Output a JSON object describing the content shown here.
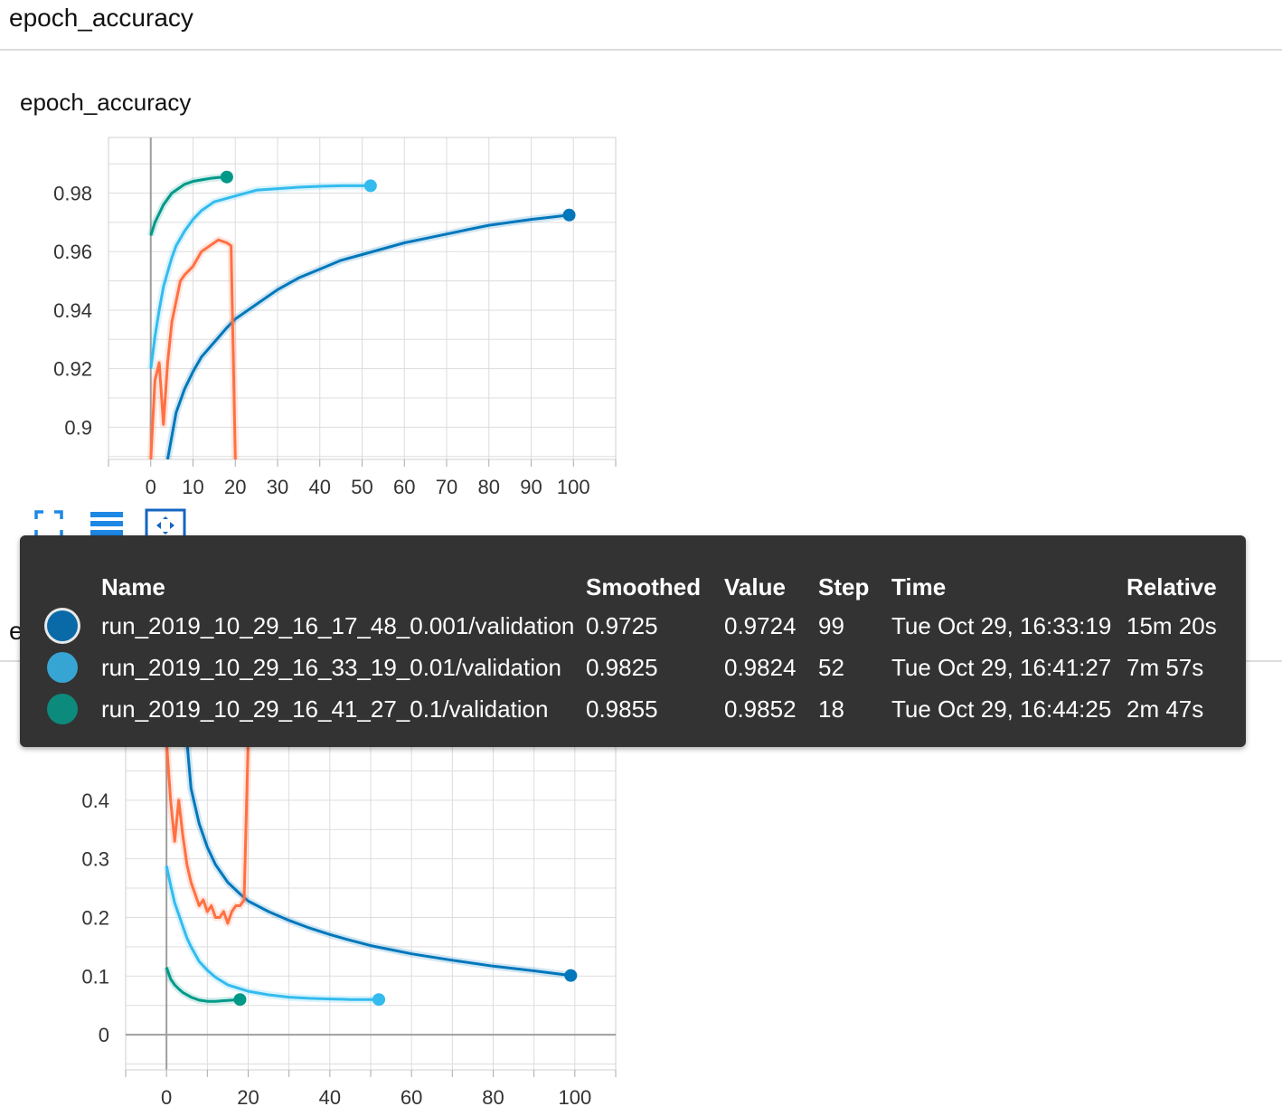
{
  "section_accuracy": {
    "title": "epoch_accuracy"
  },
  "section_loss": {
    "title": "epoch_loss"
  },
  "colors": {
    "run_0001": "#0077bb",
    "run_001": "#33bbee",
    "run_01": "#009988",
    "orange": "#ff7043",
    "axis": "#9e9e9e",
    "grid": "#dddddd"
  },
  "toolbar": {
    "expand_icon": "fullscreen-icon",
    "data_table_icon": "list-icon",
    "fit_domain_icon": "fit-domain-icon"
  },
  "tooltip": {
    "headers": {
      "name": "Name",
      "smoothed": "Smoothed",
      "value": "Value",
      "step": "Step",
      "time": "Time",
      "relative": "Relative"
    },
    "rows": [
      {
        "name": "run_2019_10_29_16_17_48_0.001/validation",
        "smoothed": "0.9725",
        "value": "0.9724",
        "step": "99",
        "time": "Tue Oct 29, 16:33:19",
        "relative": "15m 20s",
        "color": "#0a6aa8"
      },
      {
        "name": "run_2019_10_29_16_33_19_0.01/validation",
        "smoothed": "0.9825",
        "value": "0.9824",
        "step": "52",
        "time": "Tue Oct 29, 16:41:27",
        "relative": "7m 57s",
        "color": "#37a5d4"
      },
      {
        "name": "run_2019_10_29_16_41_27_0.1/validation",
        "smoothed": "0.9855",
        "value": "0.9852",
        "step": "18",
        "time": "Tue Oct 29, 16:44:25",
        "relative": "2m 47s",
        "color": "#0c8a7b"
      }
    ]
  },
  "chart_data": [
    {
      "type": "line",
      "title": "epoch_accuracy",
      "xlabel": "",
      "ylabel": "",
      "xlim": [
        -10,
        110
      ],
      "ylim": [
        0.889,
        0.999
      ],
      "x_ticks": [
        0,
        10,
        20,
        30,
        40,
        50,
        60,
        70,
        80,
        90,
        100
      ],
      "y_ticks": [
        0.9,
        0.92,
        0.94,
        0.96,
        0.98
      ],
      "y_tick_labels": [
        "0.9",
        "0.92",
        "0.94",
        "0.96",
        "0.98"
      ],
      "grid": true,
      "series": [
        {
          "color": "#0077bb",
          "x": [
            4,
            6,
            8,
            10,
            12,
            15,
            18,
            20,
            25,
            30,
            35,
            40,
            45,
            50,
            55,
            60,
            65,
            70,
            75,
            80,
            85,
            90,
            95,
            99
          ],
          "y": [
            0.889,
            0.905,
            0.913,
            0.919,
            0.924,
            0.929,
            0.934,
            0.937,
            0.942,
            0.947,
            0.951,
            0.954,
            0.957,
            0.959,
            0.961,
            0.963,
            0.9645,
            0.966,
            0.9675,
            0.969,
            0.97,
            0.971,
            0.9718,
            0.9725
          ],
          "end_point": true
        },
        {
          "color": "#33bbee",
          "x": [
            0,
            1,
            2,
            3,
            4,
            5,
            6,
            8,
            10,
            12,
            15,
            20,
            25,
            30,
            35,
            40,
            45,
            50,
            52
          ],
          "y": [
            0.92,
            0.931,
            0.94,
            0.948,
            0.953,
            0.958,
            0.962,
            0.967,
            0.971,
            0.974,
            0.977,
            0.979,
            0.981,
            0.9815,
            0.982,
            0.9823,
            0.9825,
            0.9825,
            0.9825
          ],
          "end_point": true
        },
        {
          "color": "#009988",
          "x": [
            0,
            1,
            2,
            3,
            4,
            5,
            6,
            8,
            10,
            12,
            14,
            16,
            18
          ],
          "y": [
            0.9655,
            0.97,
            0.973,
            0.976,
            0.978,
            0.98,
            0.981,
            0.983,
            0.984,
            0.9845,
            0.985,
            0.9853,
            0.9855
          ],
          "end_point": true
        },
        {
          "color": "#ff7043",
          "x": [
            0,
            1,
            2,
            3,
            4,
            5,
            6,
            7,
            8,
            10,
            12,
            14,
            16,
            18,
            19,
            19.3,
            20
          ],
          "y": [
            0.889,
            0.916,
            0.922,
            0.901,
            0.922,
            0.936,
            0.943,
            0.95,
            0.952,
            0.955,
            0.96,
            0.962,
            0.964,
            0.963,
            0.962,
            0.94,
            0.889
          ],
          "end_point": false
        }
      ]
    },
    {
      "type": "line",
      "title": "epoch_loss",
      "xlabel": "",
      "ylabel": "",
      "xlim": [
        -10,
        110
      ],
      "ylim": [
        -0.06,
        0.5
      ],
      "x_ticks": [
        0,
        20,
        40,
        60,
        80,
        100
      ],
      "y_ticks": [
        0,
        0.1,
        0.2,
        0.3,
        0.4
      ],
      "y_tick_labels": [
        "0",
        "0.1",
        "0.2",
        "0.3",
        "0.4"
      ],
      "grid": true,
      "series": [
        {
          "color": "#0077bb",
          "x": [
            5,
            6,
            8,
            10,
            12,
            15,
            18,
            20,
            25,
            30,
            35,
            40,
            45,
            50,
            55,
            60,
            70,
            80,
            90,
            99
          ],
          "y": [
            0.5,
            0.42,
            0.36,
            0.32,
            0.29,
            0.26,
            0.24,
            0.228,
            0.21,
            0.195,
            0.182,
            0.171,
            0.161,
            0.152,
            0.145,
            0.138,
            0.127,
            0.117,
            0.109,
            0.101
          ],
          "end_point": true
        },
        {
          "color": "#33bbee",
          "x": [
            0,
            1,
            2,
            3,
            4,
            5,
            6,
            8,
            10,
            12,
            15,
            20,
            25,
            30,
            35,
            40,
            45,
            50,
            52
          ],
          "y": [
            0.288,
            0.255,
            0.225,
            0.205,
            0.185,
            0.165,
            0.15,
            0.125,
            0.11,
            0.098,
            0.085,
            0.074,
            0.068,
            0.064,
            0.062,
            0.061,
            0.06,
            0.06,
            0.06
          ],
          "end_point": true
        },
        {
          "color": "#009988",
          "x": [
            0,
            1,
            2,
            3,
            4,
            6,
            8,
            10,
            12,
            14,
            16,
            18
          ],
          "y": [
            0.115,
            0.095,
            0.085,
            0.078,
            0.072,
            0.064,
            0.059,
            0.057,
            0.057,
            0.058,
            0.059,
            0.06
          ],
          "end_point": true
        },
        {
          "color": "#ff7043",
          "x": [
            0,
            1,
            2,
            3,
            4,
            5,
            6,
            7,
            8,
            9,
            10,
            11,
            12,
            13,
            14,
            15,
            16,
            17,
            18,
            19,
            20
          ],
          "y": [
            0.5,
            0.4,
            0.33,
            0.4,
            0.34,
            0.29,
            0.26,
            0.24,
            0.22,
            0.23,
            0.21,
            0.22,
            0.2,
            0.2,
            0.21,
            0.19,
            0.21,
            0.22,
            0.22,
            0.23,
            0.5
          ],
          "end_point": false
        }
      ]
    }
  ]
}
